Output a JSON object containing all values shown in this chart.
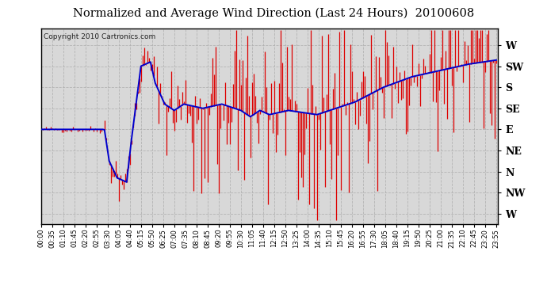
{
  "title": "Normalized and Average Wind Direction (Last 24 Hours)  20100608",
  "copyright": "Copyright 2010 Cartronics.com",
  "ytick_labels": [
    "W",
    "SW",
    "S",
    "SE",
    "E",
    "NE",
    "N",
    "NW",
    "W"
  ],
  "ytick_values": [
    8,
    7,
    6,
    5,
    4,
    3,
    2,
    1,
    0
  ],
  "ylim": [
    -0.5,
    8.8
  ],
  "background_color": "#d8d8d8",
  "outer_background": "#ffffff",
  "grid_color": "#b0b0b0",
  "title_color": "#000000",
  "red_color": "#dd0000",
  "blue_color": "#0000cc",
  "n_points": 288
}
